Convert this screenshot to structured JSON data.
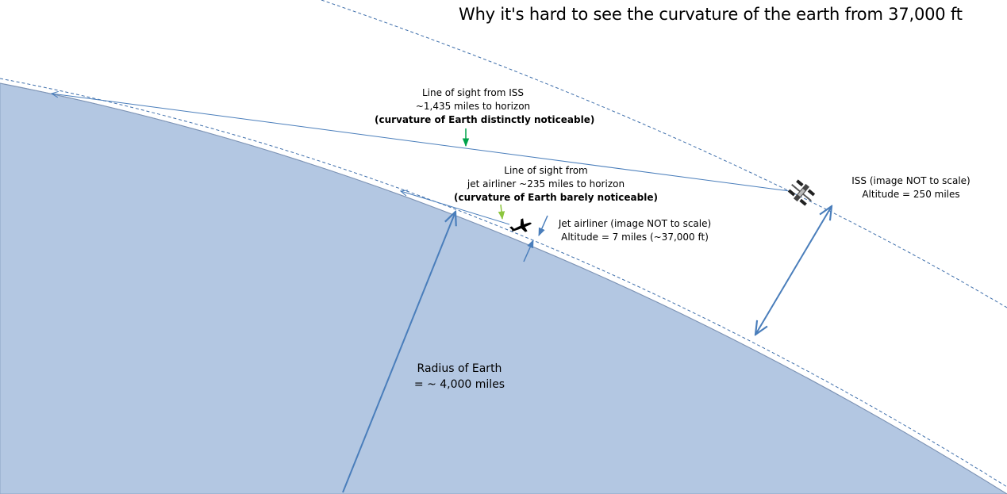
{
  "title": "Why it's hard to see the curvature of the earth from 37,000 ft",
  "labels": {
    "iss_line_of_sight": {
      "line1": "Line of sight from ISS",
      "line2": "~1,435 miles to horizon",
      "line3": "(curvature of Earth distinctly noticeable)"
    },
    "jet_line_of_sight": {
      "line1": "Line of sight from",
      "line2": "jet airliner ~235 miles to horizon",
      "line3": "(curvature of Earth barely noticeable)"
    },
    "jet_airliner": {
      "line1": "Jet airliner (image NOT to scale)",
      "line2": "Altitude = 7 miles (~37,000 ft)"
    },
    "iss": {
      "line1": "ISS (image NOT to scale)",
      "line2": "Altitude = 250 miles"
    },
    "radius": {
      "line1": "Radius of Earth",
      "line2": "= ~ 4,000 miles"
    }
  },
  "colors": {
    "earth_fill": "#b3c7e2",
    "earth_edge": "#8ea4c4",
    "arrow_blue": "#4a7ebb",
    "dashed_blue": "#3f6fab",
    "pointer_dark_green": "#00a24a",
    "pointer_light_green": "#8cc63f",
    "silhouette": "#000000"
  },
  "icons": {
    "jet": "airplane-icon",
    "iss": "satellite-icon"
  }
}
